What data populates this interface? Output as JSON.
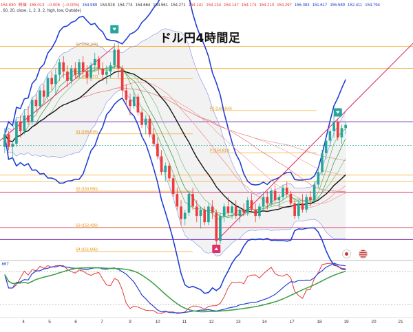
{
  "header": {
    "row1": [
      {
        "text": "154.830",
        "color": "red"
      },
      {
        "text": "終値",
        "color": "red"
      },
      {
        "text": "155.013",
        "color": "red"
      },
      {
        "text": "−0.005",
        "color": "red"
      },
      {
        "text": "(−0.00%)",
        "color": "red"
      },
      {
        "text": "154.989",
        "color": "blue"
      },
      {
        "text": "154.928",
        "color": "dark"
      },
      {
        "text": "154.774",
        "color": "dark"
      },
      {
        "text": "154.664",
        "color": "dark"
      },
      {
        "text": "154.561",
        "color": "dark"
      },
      {
        "text": "154.271",
        "color": "dark"
      },
      {
        "text": "154.141",
        "color": "red"
      },
      {
        "text": "154.134",
        "color": "red"
      },
      {
        "text": "154.147",
        "color": "red"
      },
      {
        "text": "154.174",
        "color": "red"
      },
      {
        "text": "154.210",
        "color": "red"
      },
      {
        "text": "154.297",
        "color": "red"
      },
      {
        "text": "156.383",
        "color": "blue"
      },
      {
        "text": "151.617",
        "color": "blue"
      },
      {
        "text": "155.589",
        "color": "blue"
      },
      {
        "text": "152.411",
        "color": "blue"
      },
      {
        "text": "154.794",
        "color": "blue"
      }
    ],
    "row2": ", 60, 20, close, 1, 2, 3, 2, high, low, Outside)"
  },
  "title": "ドル円4時間足",
  "chart_data": {
    "type": "candlestick",
    "x_tick_labels": [
      "4",
      "5",
      "6",
      "7",
      "8",
      "9",
      "10",
      "11",
      "12",
      "13",
      "14",
      "17",
      "18",
      "19",
      "20",
      "21",
      "24"
    ],
    "pivot_labels": [
      {
        "label": "R2",
        "value": 158.202
      },
      {
        "label": "R1",
        "value": 157.177
      },
      {
        "label": "P1",
        "value": 156.159
      },
      {
        "label": "S1",
        "value": 155.415
      },
      {
        "label": "P",
        "value": 154.813
      },
      {
        "label": "S2",
        "value": 153.59
      },
      {
        "label": "S3",
        "value": 152.428
      },
      {
        "label": "S4",
        "value": 151.666
      }
    ],
    "pivot_texts": [
      "R2 (158.202)",
      "R1 (157.177)",
      "P1 (156.159)",
      "S1 (155.415)",
      "P (154.813)",
      "S2 (153.590)",
      "S3 (152.428)",
      "S4 (151.666)"
    ],
    "oscillator_label": ".667",
    "candles": [
      [
        155.0,
        155.6,
        154.8,
        155.4
      ],
      [
        155.4,
        155.5,
        154.9,
        155.0
      ],
      [
        155.0,
        155.2,
        154.6,
        155.1
      ],
      [
        155.1,
        155.9,
        155.0,
        155.8
      ],
      [
        155.8,
        156.0,
        155.3,
        155.5
      ],
      [
        155.5,
        156.2,
        155.4,
        156.0
      ],
      [
        156.0,
        156.3,
        155.7,
        155.8
      ],
      [
        155.8,
        156.6,
        155.7,
        156.5
      ],
      [
        156.5,
        156.7,
        156.1,
        156.3
      ],
      [
        156.3,
        156.9,
        156.2,
        156.8
      ],
      [
        156.8,
        157.0,
        156.4,
        156.6
      ],
      [
        156.6,
        157.3,
        156.5,
        157.2
      ],
      [
        157.2,
        157.4,
        156.8,
        157.0
      ],
      [
        157.0,
        157.5,
        156.7,
        157.3
      ],
      [
        157.3,
        157.8,
        157.1,
        157.7
      ],
      [
        157.7,
        157.9,
        157.2,
        157.4
      ],
      [
        157.4,
        157.6,
        156.9,
        157.1
      ],
      [
        157.1,
        157.6,
        157.0,
        157.5
      ],
      [
        157.5,
        157.7,
        157.2,
        157.3
      ],
      [
        157.3,
        157.8,
        157.2,
        157.7
      ],
      [
        157.7,
        157.9,
        157.3,
        157.4
      ],
      [
        157.4,
        157.6,
        157.0,
        157.2
      ],
      [
        157.2,
        157.7,
        157.1,
        157.6
      ],
      [
        157.6,
        158.0,
        157.4,
        157.8
      ],
      [
        157.8,
        157.9,
        157.3,
        157.5
      ],
      [
        157.5,
        157.7,
        157.1,
        157.3
      ],
      [
        157.3,
        157.6,
        157.0,
        157.4
      ],
      [
        157.4,
        157.7,
        157.2,
        157.6
      ],
      [
        157.6,
        158.3,
        157.5,
        158.1
      ],
      [
        158.1,
        158.3,
        157.2,
        157.5
      ],
      [
        157.5,
        157.6,
        156.6,
        156.8
      ],
      [
        156.8,
        157.0,
        156.3,
        156.5
      ],
      [
        156.5,
        156.7,
        156.0,
        156.3
      ],
      [
        156.3,
        156.8,
        156.2,
        156.6
      ],
      [
        156.6,
        156.7,
        156.0,
        156.1
      ],
      [
        156.1,
        156.2,
        155.6,
        155.7
      ],
      [
        155.7,
        156.0,
        155.4,
        155.9
      ],
      [
        155.9,
        156.0,
        155.3,
        155.4
      ],
      [
        155.4,
        155.6,
        155.0,
        155.1
      ],
      [
        155.1,
        155.3,
        154.6,
        154.7
      ],
      [
        154.7,
        154.9,
        154.1,
        154.2
      ],
      [
        154.2,
        154.5,
        153.9,
        154.4
      ],
      [
        154.4,
        154.5,
        153.9,
        154.0
      ],
      [
        154.0,
        154.1,
        153.4,
        153.5
      ],
      [
        153.5,
        153.7,
        153.0,
        153.1
      ],
      [
        153.1,
        153.3,
        152.5,
        152.7
      ],
      [
        152.7,
        153.0,
        152.5,
        152.9
      ],
      [
        152.9,
        153.6,
        152.8,
        153.5
      ],
      [
        153.5,
        153.7,
        153.0,
        153.1
      ],
      [
        153.1,
        153.3,
        152.6,
        152.8
      ],
      [
        152.8,
        153.1,
        152.4,
        153.0
      ],
      [
        153.0,
        153.1,
        152.5,
        152.6
      ],
      [
        152.6,
        153.2,
        152.5,
        153.1
      ],
      [
        153.1,
        153.3,
        152.7,
        152.9
      ],
      [
        152.9,
        153.0,
        151.8,
        152.0
      ],
      [
        152.0,
        152.9,
        151.9,
        152.8
      ],
      [
        152.8,
        153.2,
        152.6,
        153.1
      ],
      [
        153.1,
        153.4,
        152.8,
        152.9
      ],
      [
        152.9,
        153.2,
        152.7,
        153.1
      ],
      [
        153.1,
        153.3,
        152.7,
        152.8
      ],
      [
        152.8,
        153.1,
        152.6,
        153.0
      ],
      [
        153.0,
        153.2,
        152.8,
        152.9
      ],
      [
        152.9,
        153.4,
        152.8,
        153.3
      ],
      [
        153.3,
        153.5,
        152.9,
        153.0
      ],
      [
        153.0,
        153.2,
        152.6,
        152.8
      ],
      [
        152.8,
        153.2,
        152.7,
        153.1
      ],
      [
        153.1,
        153.5,
        153.0,
        153.4
      ],
      [
        153.4,
        153.6,
        153.0,
        153.2
      ],
      [
        153.2,
        153.7,
        153.1,
        153.6
      ],
      [
        153.6,
        153.8,
        153.2,
        153.3
      ],
      [
        153.3,
        153.5,
        153.0,
        153.4
      ],
      [
        153.4,
        153.8,
        153.3,
        153.7
      ],
      [
        153.7,
        153.9,
        153.4,
        153.5
      ],
      [
        153.5,
        153.6,
        153.1,
        153.2
      ],
      [
        153.2,
        153.3,
        152.7,
        152.8
      ],
      [
        152.8,
        153.3,
        152.7,
        153.2
      ],
      [
        153.2,
        153.5,
        152.9,
        153.0
      ],
      [
        153.0,
        153.5,
        152.9,
        153.4
      ],
      [
        153.4,
        153.6,
        153.1,
        153.3
      ],
      [
        153.3,
        153.9,
        153.2,
        153.8
      ],
      [
        153.8,
        154.3,
        153.7,
        154.2
      ],
      [
        154.2,
        154.9,
        154.1,
        154.8
      ],
      [
        154.8,
        155.3,
        154.6,
        155.2
      ],
      [
        155.2,
        155.6,
        155.0,
        155.5
      ],
      [
        155.5,
        156.0,
        155.3,
        155.8
      ],
      [
        155.8,
        155.9,
        155.2,
        155.3
      ],
      [
        155.3,
        155.7,
        155.1,
        155.6
      ],
      [
        155.6,
        155.8,
        155.4,
        155.7
      ]
    ],
    "x_unit": "日 (4時間足)",
    "y_unit": "USD/JPY"
  }
}
